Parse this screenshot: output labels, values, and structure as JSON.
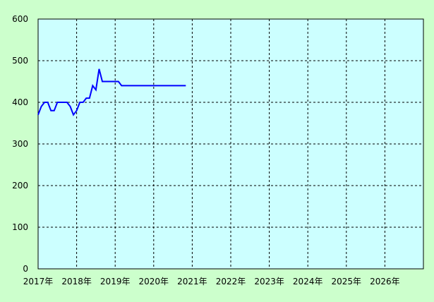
{
  "chart_data": {
    "type": "line",
    "title": "",
    "xlabel": "",
    "ylabel": "",
    "ylim": [
      0,
      600
    ],
    "yticks": [
      0,
      100,
      200,
      300,
      400,
      500,
      600
    ],
    "xticks": [
      "2017年",
      "2018年",
      "2019年",
      "2020年",
      "2021年",
      "2022年",
      "2023年",
      "2024年",
      "2025年",
      "2026年"
    ],
    "xlim": [
      "2017-01",
      "2027-01"
    ],
    "grid": true,
    "colors": {
      "background": "#ccffcc",
      "plot": "#ccffff",
      "line": "#0000ff"
    },
    "series": [
      {
        "x": [
          "2017-01",
          "2017-02",
          "2017-03",
          "2017-04",
          "2017-05",
          "2017-06",
          "2017-07",
          "2017-08",
          "2017-09",
          "2017-10",
          "2017-11",
          "2017-12",
          "2018-01",
          "2018-02",
          "2018-03",
          "2018-04",
          "2018-05",
          "2018-06",
          "2018-07",
          "2018-08",
          "2018-09",
          "2018-10",
          "2018-11",
          "2018-12",
          "2019-01",
          "2019-02",
          "2019-03",
          "2019-04",
          "2019-06",
          "2019-09",
          "2019-12",
          "2020-03",
          "2020-06",
          "2020-09",
          "2020-11"
        ],
        "values": [
          370,
          390,
          400,
          400,
          380,
          380,
          400,
          400,
          400,
          400,
          390,
          370,
          380,
          400,
          400,
          410,
          410,
          440,
          430,
          480,
          450,
          450,
          450,
          450,
          450,
          450,
          440,
          440,
          440,
          440,
          440,
          440,
          440,
          440,
          440
        ]
      }
    ]
  }
}
